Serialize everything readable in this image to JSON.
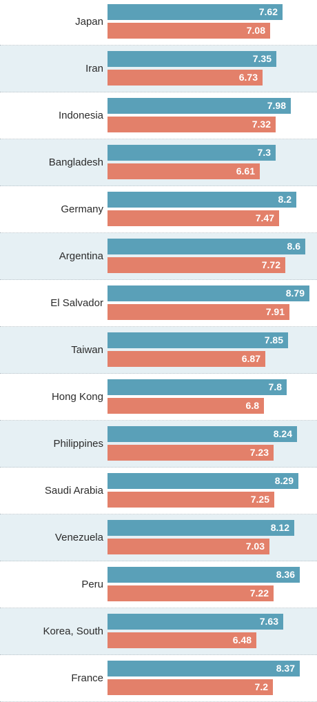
{
  "colors": {
    "series_blue": "#5aa0b8",
    "series_orange": "#e3806a",
    "row_alt_background": "#e6f0f4"
  },
  "chart_data": {
    "type": "bar",
    "orientation": "horizontal",
    "categories": [
      "Japan",
      "Iran",
      "Indonesia",
      "Bangladesh",
      "Germany",
      "Argentina",
      "El Salvador",
      "Taiwan",
      "Hong Kong",
      "Philippines",
      "Saudi Arabia",
      "Venezuela",
      "Peru",
      "Korea, South",
      "France"
    ],
    "series": [
      {
        "values": [
          7.62,
          7.35,
          7.98,
          7.3,
          8.2,
          8.6,
          8.79,
          7.85,
          7.8,
          8.24,
          8.29,
          8.12,
          8.36,
          7.63,
          8.37
        ],
        "color": "#5aa0b8"
      },
      {
        "values": [
          7.08,
          6.73,
          7.32,
          6.61,
          7.47,
          7.72,
          7.91,
          6.87,
          6.8,
          7.23,
          7.25,
          7.03,
          7.22,
          6.48,
          7.2
        ],
        "color": "#e3806a"
      }
    ],
    "value_labels": [
      [
        "7.62",
        "7.35",
        "7.98",
        "7.3",
        "8.2",
        "8.6",
        "8.79",
        "7.85",
        "7.8",
        "8.24",
        "8.29",
        "8.12",
        "8.36",
        "7.63",
        "8.37"
      ],
      [
        "7.08",
        "6.73",
        "7.32",
        "6.61",
        "7.47",
        "7.72",
        "7.91",
        "6.87",
        "6.8",
        "7.23",
        "7.25",
        "7.03",
        "7.22",
        "6.48",
        "7.2"
      ]
    ],
    "xlim": [
      0,
      8.9
    ],
    "grid": false,
    "legend": "none"
  }
}
